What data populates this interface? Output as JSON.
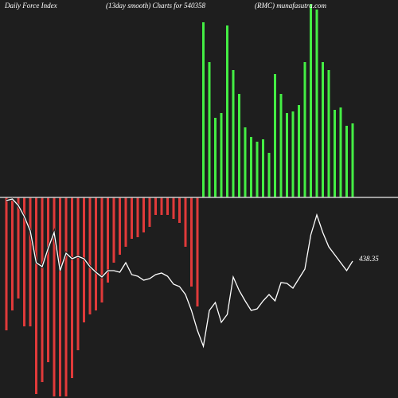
{
  "chart_data": {
    "type": "bar",
    "title": "Daily Force  Index",
    "subtitle": "(13day smooth) Charts for 540358",
    "source": "(RMC) munafasutra.com",
    "ylim": [
      -252,
      248
    ],
    "y2lim": [
      352.35,
      602.35
    ],
    "series": [
      {
        "type": "bar",
        "color_positive": "#44ee44",
        "color_negative": "#e03a3a",
        "values": [
          -167,
          -142,
          -127,
          -162,
          -162,
          -247,
          -232,
          -207,
          -250,
          -250,
          -250,
          -227,
          -192,
          -157,
          -147,
          -142,
          -132,
          -107,
          -82,
          -72,
          -62,
          -52,
          -50,
          -44,
          -37,
          -22,
          -22,
          -22,
          -27,
          -32,
          -62,
          -112,
          -137,
          220,
          170,
          100,
          106,
          216,
          160,
          130,
          88,
          76,
          70,
          73,
          56,
          155,
          130,
          106,
          108,
          116,
          170,
          243,
          236,
          170,
          160,
          110,
          113,
          90,
          93
        ]
      },
      {
        "type": "line",
        "axis": "y2",
        "color": "#ffffff",
        "values": [
          476.35,
          477.35,
          473.35,
          466.35,
          457.35,
          437.35,
          434.85,
          446.35,
          456.35,
          432.35,
          443.35,
          439.85,
          441.35,
          439.85,
          434.85,
          431.35,
          428.35,
          432.35,
          432.35,
          431.35,
          437.35,
          429.85,
          428.85,
          426.35,
          427.35,
          429.85,
          430.85,
          428.85,
          423.85,
          422.35,
          417.35,
          407.35,
          394.85,
          384.85,
          407.35,
          412.35,
          399.85,
          404.85,
          428.35,
          419.85,
          413.35,
          407.35,
          408.35,
          413.35,
          417.35,
          413.35,
          424.85,
          424.35,
          421.35,
          427.35,
          433.35,
          454.85,
          467.35,
          456.35,
          447.35,
          442.35,
          437.35,
          432.35,
          438.35
        ]
      }
    ]
  }
}
